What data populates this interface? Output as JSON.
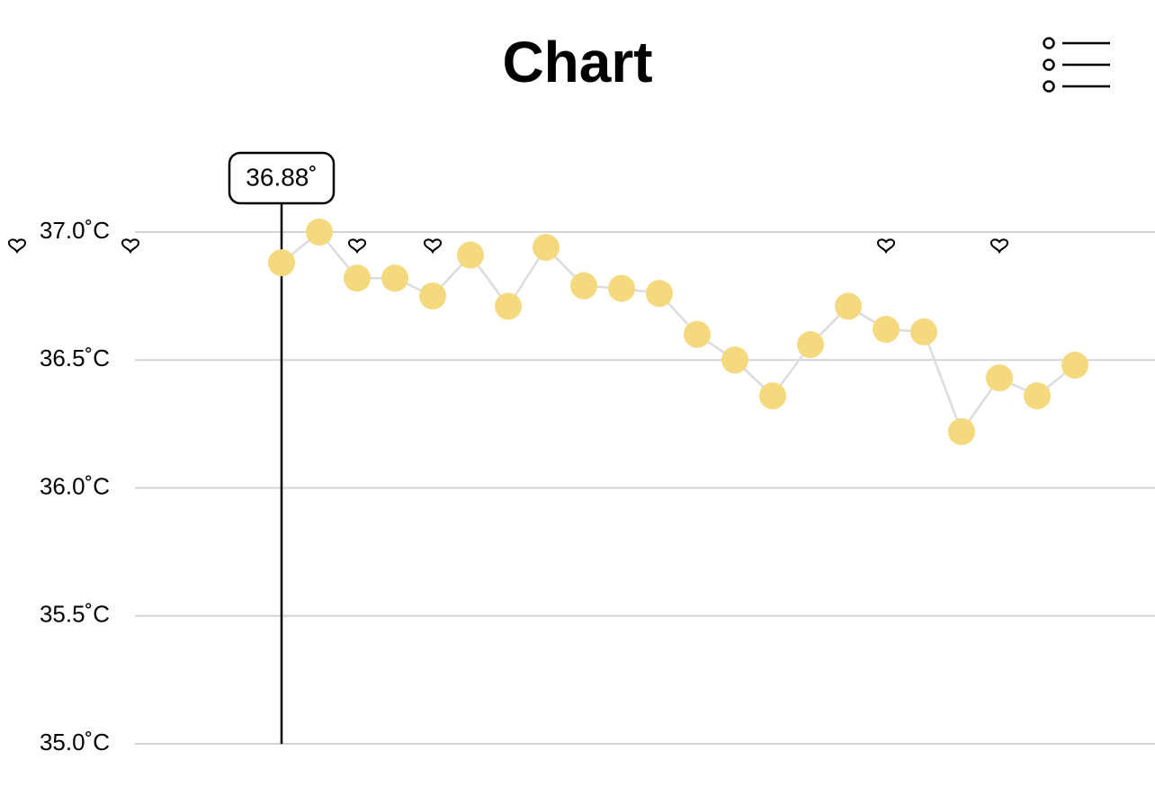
{
  "chart_data": {
    "type": "line",
    "title": "Chart",
    "x": [
      7,
      8,
      9,
      10,
      11,
      12,
      13,
      14,
      15,
      16,
      17,
      18,
      19,
      20,
      21,
      22,
      23,
      24,
      25,
      26,
      27,
      28
    ],
    "values": [
      36.88,
      37.0,
      36.82,
      36.82,
      36.75,
      36.91,
      36.71,
      36.94,
      36.79,
      36.78,
      36.76,
      36.6,
      36.5,
      36.36,
      36.56,
      36.71,
      36.62,
      36.61,
      36.22,
      36.43,
      36.36,
      36.48
    ],
    "color": "#f5d97e",
    "line_color": "#dcdcdc",
    "xlim": [
      0,
      30
    ],
    "ylim": [
      35,
      37
    ],
    "yticks": [
      {
        "value": 37,
        "label": "37.0˚C"
      },
      {
        "value": 36.5,
        "label": "36.5˚C"
      },
      {
        "value": 36,
        "label": "36.0˚C"
      },
      {
        "value": 35.5,
        "label": "35.5˚C"
      },
      {
        "value": 35,
        "label": "35.0˚C"
      }
    ],
    "grid": true,
    "markers": {
      "x": [
        0,
        3,
        9,
        11,
        23,
        26
      ]
    },
    "tooltip": {
      "x": 7,
      "value": 36.88,
      "label": "36.88˚"
    }
  }
}
